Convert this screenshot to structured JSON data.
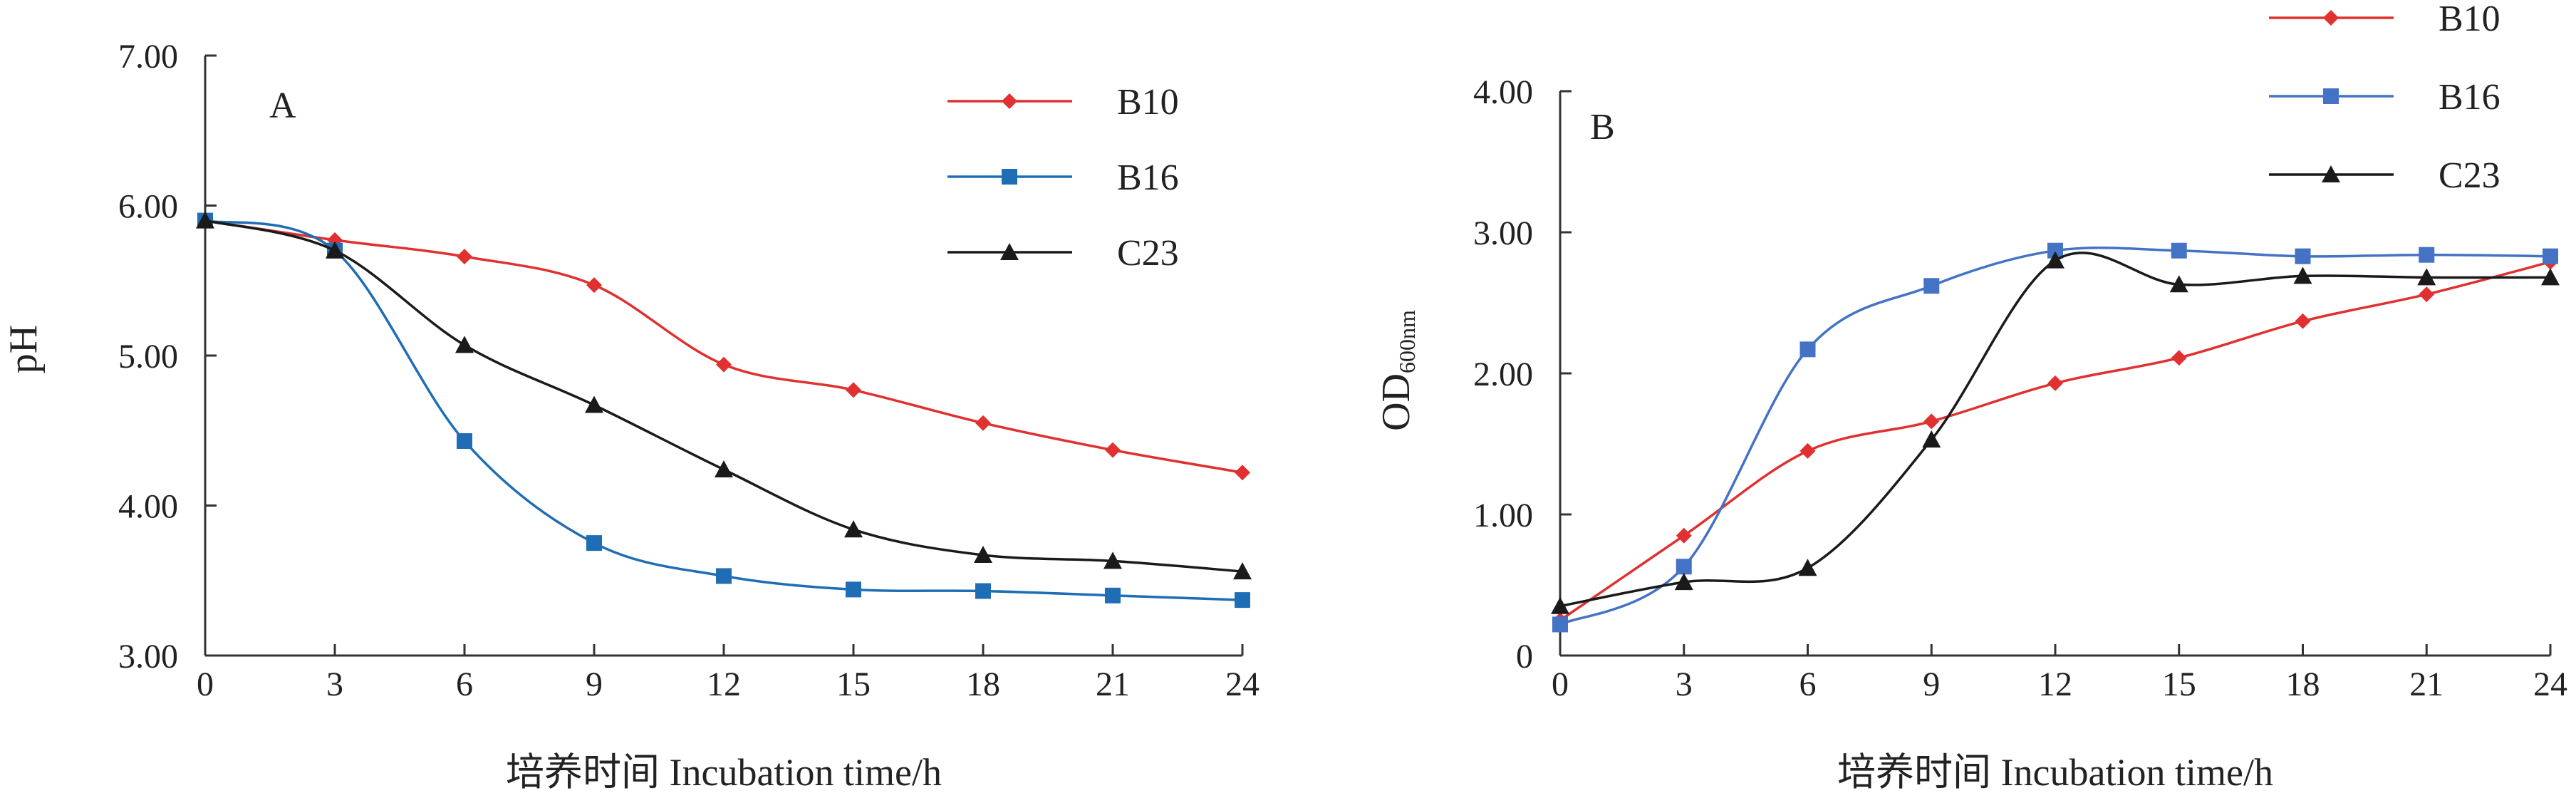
{
  "chart_data": [
    {
      "type": "line",
      "panel_label": "A",
      "title": "",
      "xlabel": "培养时间 Incubation time/h",
      "ylabel": "pH",
      "xlim": [
        0,
        24
      ],
      "ylim": [
        3.0,
        7.0
      ],
      "x_ticks": [
        0,
        3,
        6,
        9,
        12,
        15,
        18,
        21,
        24
      ],
      "x_tick_labels": [
        "0",
        "3",
        "6",
        "9",
        "12",
        "15",
        "18",
        "21",
        "24"
      ],
      "y_ticks": [
        3.0,
        4.0,
        5.0,
        6.0,
        7.0
      ],
      "y_tick_labels": [
        "3.00",
        "4.00",
        "5.00",
        "6.00",
        "7.00"
      ],
      "legend_position": "top-right",
      "grid": false,
      "x": [
        0,
        3,
        6,
        9,
        12,
        15,
        18,
        21,
        24
      ],
      "series": [
        {
          "name": "B10",
          "color": "#e03030",
          "marker": "diamond",
          "values": [
            5.9,
            5.77,
            5.66,
            5.47,
            4.94,
            4.77,
            4.55,
            4.37,
            4.22
          ]
        },
        {
          "name": "B16",
          "color": "#1f6db5",
          "marker": "square",
          "values": [
            5.9,
            5.7,
            4.43,
            3.75,
            3.53,
            3.44,
            3.43,
            3.4,
            3.37
          ]
        },
        {
          "name": "C23",
          "color": "#1a1a1a",
          "marker": "triangle",
          "values": [
            5.9,
            5.7,
            5.07,
            4.67,
            4.24,
            3.84,
            3.67,
            3.63,
            3.56
          ]
        }
      ]
    },
    {
      "type": "line",
      "panel_label": "B",
      "title": "",
      "xlabel": "培养时间 Incubation time/h",
      "ylabel": "OD",
      "ylabel_subscript": "600nm",
      "xlim": [
        0,
        24
      ],
      "ylim": [
        0,
        4.0
      ],
      "x_ticks": [
        0,
        3,
        6,
        9,
        12,
        15,
        18,
        21,
        24
      ],
      "x_tick_labels": [
        "0",
        "3",
        "6",
        "9",
        "12",
        "15",
        "18",
        "21",
        "24"
      ],
      "y_ticks": [
        0,
        1.0,
        2.0,
        3.0,
        4.0
      ],
      "y_tick_labels": [
        "0",
        "1.00",
        "2.00",
        "3.00",
        "4.00"
      ],
      "legend_position": "top-right",
      "grid": false,
      "x": [
        0,
        3,
        6,
        9,
        12,
        15,
        18,
        21,
        24
      ],
      "series": [
        {
          "name": "B10",
          "color": "#e03030",
          "marker": "diamond",
          "values": [
            0.25,
            0.85,
            1.45,
            1.66,
            1.93,
            2.11,
            2.37,
            2.56,
            2.79
          ]
        },
        {
          "name": "B16",
          "color": "#4472c4",
          "marker": "square",
          "values": [
            0.22,
            0.63,
            2.17,
            2.62,
            2.87,
            2.87,
            2.83,
            2.84,
            2.83
          ]
        },
        {
          "name": "C23",
          "color": "#1a1a1a",
          "marker": "triangle",
          "values": [
            0.35,
            0.52,
            0.62,
            1.53,
            2.8,
            2.63,
            2.69,
            2.68,
            2.68
          ]
        }
      ]
    }
  ]
}
